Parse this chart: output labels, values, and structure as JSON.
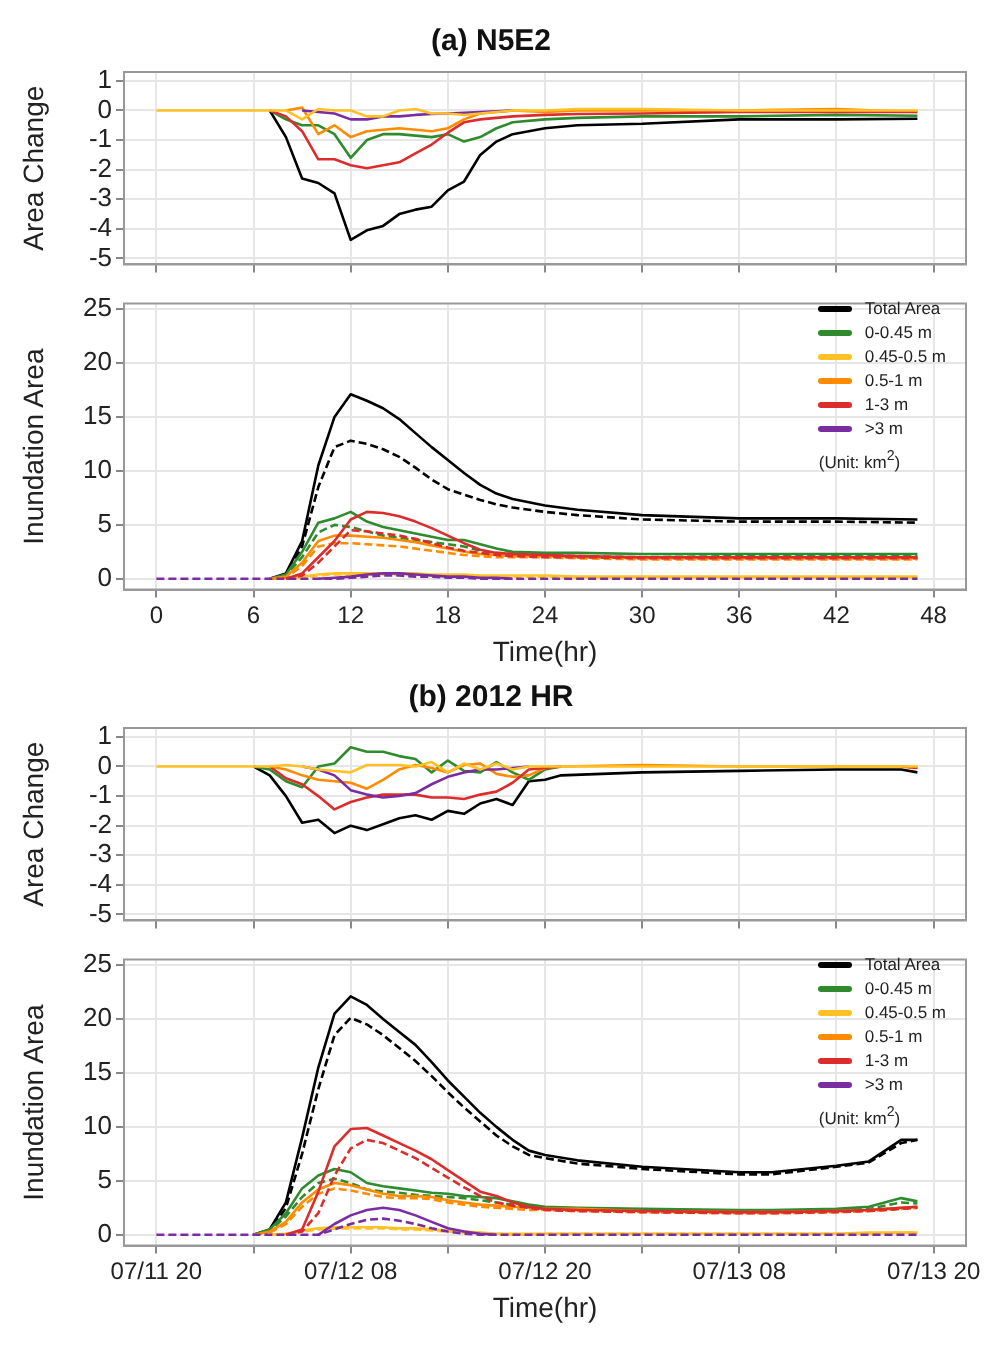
{
  "chart_data": [
    {
      "type": "line",
      "title": "(a) N5E2",
      "ylabel": "Area Change",
      "xlim": [
        -2,
        50
      ],
      "xticks": [
        0,
        6,
        12,
        18,
        24,
        30,
        36,
        42,
        48
      ],
      "ylim": [
        -5.2,
        1.3
      ],
      "yticks": [
        -5,
        -4,
        -3,
        -2,
        -1,
        0,
        1
      ],
      "grid": true,
      "tick_labels": "y",
      "marker": "none",
      "x": [
        0,
        7,
        8,
        9,
        10,
        11,
        12,
        13,
        14,
        15,
        16,
        17,
        18,
        19,
        20,
        21,
        22,
        24,
        26,
        30,
        36,
        42,
        47
      ],
      "series": [
        {
          "color": "#000000",
          "values": [
            null,
            0,
            -0.9,
            -2.3,
            -2.45,
            -2.8,
            -4.37,
            -4.05,
            -3.9,
            -3.5,
            -3.35,
            -3.25,
            -2.7,
            -2.4,
            -1.5,
            -1.05,
            -0.8,
            -0.6,
            -0.5,
            -0.45,
            -0.3,
            -0.3,
            -0.28
          ]
        },
        {
          "color": "#2e8b2e",
          "values": [
            null,
            0,
            -0.3,
            -0.5,
            -0.5,
            -0.8,
            -1.6,
            -1.0,
            -0.8,
            -0.8,
            -0.85,
            -0.9,
            -0.8,
            -1.05,
            -0.9,
            -0.6,
            -0.4,
            -0.3,
            -0.25,
            -0.2,
            -0.2,
            -0.15,
            -0.18
          ]
        },
        {
          "color": "#ff8c00",
          "values": [
            null,
            null,
            0,
            0.1,
            -0.8,
            -0.5,
            -0.9,
            -0.7,
            -0.65,
            -0.6,
            -0.65,
            -0.7,
            -0.6,
            -0.3,
            -0.1,
            -0.05,
            0,
            -0.05,
            0,
            0,
            0,
            0.05,
            -0.05
          ]
        },
        {
          "color": "#dd2c2c",
          "values": [
            null,
            0,
            -0.2,
            -0.7,
            -1.65,
            -1.65,
            -1.85,
            -1.95,
            -1.85,
            -1.75,
            -1.45,
            -1.15,
            -0.75,
            -0.4,
            -0.3,
            -0.25,
            -0.2,
            -0.15,
            -0.12,
            -0.1,
            -0.05,
            -0.05,
            -0.05
          ]
        },
        {
          "color": "#7a2da0",
          "values": [
            null,
            null,
            null,
            0,
            -0.05,
            -0.1,
            -0.3,
            -0.3,
            -0.2,
            -0.2,
            -0.15,
            -0.12,
            -0.1,
            -0.08,
            -0.05,
            -0.03,
            0,
            null,
            null,
            null,
            null,
            null,
            null
          ]
        },
        {
          "color": "#ffc125",
          "values": [
            0,
            0,
            0,
            -0.3,
            0.05,
            0,
            0,
            -0.2,
            -0.2,
            0,
            0.05,
            -0.1,
            -0.1,
            -0.15,
            -0.1,
            -0.05,
            0,
            0,
            0.05,
            0.05,
            0,
            0,
            0
          ]
        }
      ]
    },
    {
      "type": "line",
      "ylabel": "Inundation Area",
      "xlabel": "Time(hr)",
      "xlim": [
        -2,
        50
      ],
      "xticks": [
        0,
        6,
        12,
        18,
        24,
        30,
        36,
        42,
        48
      ],
      "ylim": [
        -1,
        25.5
      ],
      "yticks": [
        0,
        5,
        10,
        15,
        20,
        25
      ],
      "grid": true,
      "marker": "none",
      "legend": "top right",
      "annotations": [
        "(Unit: km$^{2}$)"
      ],
      "x": [
        0,
        7,
        8,
        9,
        10,
        11,
        12,
        13,
        14,
        15,
        16,
        17,
        18,
        19,
        20,
        21,
        22,
        24,
        26,
        30,
        36,
        42,
        47
      ],
      "series": [
        {
          "name": "Total Area",
          "color": "#000000",
          "values": [
            null,
            0,
            0.5,
            3.5,
            10.5,
            15,
            17.1,
            16.5,
            15.8,
            14.8,
            13.5,
            12.2,
            11,
            9.8,
            8.7,
            7.9,
            7.4,
            6.8,
            6.4,
            5.9,
            5.6,
            5.6,
            5.5
          ]
        },
        {
          "color": "#000000",
          "line_style": "dashed",
          "values": [
            null,
            0,
            0.3,
            3,
            8.5,
            12.2,
            12.8,
            12.5,
            12,
            11.3,
            10.3,
            9.2,
            8.3,
            7.8,
            7.3,
            6.9,
            6.6,
            6.2,
            5.9,
            5.5,
            5.3,
            5.3,
            5.2
          ]
        },
        {
          "name": "0-0.45 m",
          "color": "#2e8b2e",
          "values": [
            null,
            0,
            0.4,
            2.5,
            5.2,
            5.6,
            6.2,
            5.3,
            4.8,
            4.5,
            4.2,
            3.9,
            3.6,
            3.6,
            3.2,
            2.8,
            2.5,
            2.4,
            2.4,
            2.3,
            2.3,
            2.3,
            2.3
          ]
        },
        {
          "color": "#2e8b2e",
          "line_style": "dashed",
          "values": [
            null,
            0,
            0.3,
            2,
            4.3,
            5,
            4.8,
            4.4,
            4,
            3.8,
            3.6,
            3.4,
            3.2,
            3,
            2.6,
            2.4,
            2.3,
            2.2,
            2.1,
            2,
            2.1,
            2.1,
            2.1
          ]
        },
        {
          "name": "0.45-0.5 m",
          "color": "#ffc125",
          "values": [
            null,
            null,
            0,
            0.2,
            0.4,
            0.5,
            0.5,
            0.5,
            0.5,
            0.5,
            0.5,
            0.4,
            0.4,
            0.4,
            0.3,
            0.3,
            0.3,
            0.3,
            0.2,
            0.2,
            0.2,
            0.2,
            0.2
          ]
        },
        {
          "color": "#ffc125",
          "line_style": "dashed",
          "values": [
            null,
            null,
            0,
            0.1,
            0.3,
            0.4,
            0.4,
            0.4,
            0.4,
            0.4,
            0.4,
            0.3,
            0.3,
            0.3,
            0.2,
            0.2,
            0.2,
            0.2,
            0.1,
            0.1,
            0.1,
            0.1,
            0.1
          ]
        },
        {
          "name": "0.5-1 m",
          "color": "#ff8c00",
          "values": [
            null,
            0,
            0.2,
            1.5,
            3.5,
            4,
            4,
            3.9,
            3.8,
            3.6,
            3.4,
            3.1,
            2.8,
            2.5,
            2.3,
            2.2,
            2.1,
            2.1,
            2,
            1.9,
            1.9,
            1.9,
            1.9
          ]
        },
        {
          "color": "#ff8c00",
          "line_style": "dashed",
          "values": [
            null,
            0,
            0.1,
            1.2,
            3,
            3.3,
            3.3,
            3.2,
            3.1,
            3,
            2.8,
            2.6,
            2.4,
            2.2,
            2.1,
            2,
            2,
            2,
            1.9,
            1.8,
            1.8,
            1.8,
            1.8
          ]
        },
        {
          "name": "1-3 m",
          "color": "#dd2c2c",
          "values": [
            null,
            null,
            0,
            0.5,
            2,
            3.5,
            5.5,
            6.2,
            6.1,
            5.8,
            5.3,
            4.7,
            4,
            3.3,
            2.7,
            2.4,
            2.3,
            2.2,
            2.1,
            2,
            2,
            2,
            2
          ]
        },
        {
          "color": "#dd2c2c",
          "line_style": "dashed",
          "values": [
            null,
            null,
            0,
            0.3,
            1.5,
            3,
            4.5,
            4.4,
            4.2,
            4,
            3.7,
            3.3,
            2.9,
            2.6,
            2.4,
            2.2,
            2.1,
            2,
            2,
            1.9,
            1.9,
            1.9,
            1.9
          ]
        },
        {
          "name": ">3 m",
          "color": "#7a2da0",
          "values": [
            null,
            null,
            null,
            null,
            0,
            0.1,
            0.2,
            0.4,
            0.5,
            0.5,
            0.4,
            0.3,
            0.2,
            0.2,
            0.1,
            0.1,
            0,
            null,
            null,
            null,
            null,
            null,
            null
          ]
        },
        {
          "color": "#7a2da0",
          "line_style": "dashed",
          "values": [
            0,
            0,
            0,
            0,
            0,
            0,
            0.1,
            0.2,
            0.3,
            0.3,
            0.2,
            0.2,
            0.1,
            0.1,
            0,
            0,
            0,
            0,
            0,
            0,
            0,
            0,
            0
          ]
        }
      ]
    },
    {
      "type": "line",
      "title": "(b) 2012 HR",
      "ylabel": "Area Change",
      "xlim": [
        "--07-11T18:00",
        "--07-13T22:00"
      ],
      "xticks": [
        "--07-11T20:00",
        "--07-12T02:00",
        "--07-12T08:00",
        "--07-12T14:00",
        "--07-12T20:00",
        "--07-13T02:00",
        "--07-13T08:00",
        "--07-13T14:00",
        "--07-13T20:00"
      ],
      "ylim": [
        -5.2,
        1.3
      ],
      "yticks": [
        -5,
        -4,
        -3,
        -2,
        -1,
        0,
        1
      ],
      "grid": true,
      "tick_labels": "y",
      "marker": "none",
      "x": [
        "--07-11T20:00",
        "--07-12T02:00",
        "--07-12T03:00",
        "--07-12T04:00",
        "--07-12T05:00",
        "--07-12T06:00",
        "--07-12T07:00",
        "--07-12T08:00",
        "--07-12T09:00",
        "--07-12T10:00",
        "--07-12T11:00",
        "--07-12T12:00",
        "--07-12T13:00",
        "--07-12T14:00",
        "--07-12T15:00",
        "--07-12T16:00",
        "--07-12T17:00",
        "--07-12T18:00",
        "--07-12T19:00",
        "--07-12T20:00",
        "--07-12T21:00",
        "--07-13T02:00",
        "--07-13T08:00",
        "--07-13T14:00",
        "--07-13T18:00",
        "--07-13T19:00"
      ],
      "series": [
        {
          "color": "#000000",
          "values": [
            null,
            0,
            -0.3,
            -1.0,
            -1.9,
            -1.8,
            -2.25,
            -2.0,
            -2.15,
            -1.95,
            -1.75,
            -1.65,
            -1.8,
            -1.5,
            -1.6,
            -1.25,
            -1.1,
            -1.3,
            -0.5,
            -0.45,
            -0.3,
            -0.2,
            -0.15,
            -0.1,
            -0.1,
            -0.2
          ]
        },
        {
          "color": "#2e8b2e",
          "values": [
            null,
            0,
            -0.1,
            -0.5,
            -0.7,
            0,
            0.1,
            0.65,
            0.5,
            0.5,
            0.35,
            0.25,
            -0.2,
            0.2,
            -0.15,
            -0.2,
            0.15,
            -0.2,
            -0.45,
            -0.1,
            0,
            null,
            null,
            null,
            null,
            null
          ]
        },
        {
          "color": "#ff8c00",
          "values": [
            null,
            null,
            0,
            -0.1,
            -0.3,
            -0.45,
            -0.5,
            -0.55,
            -0.75,
            -0.45,
            -0.1,
            0.05,
            -0.05,
            -0.2,
            0.05,
            0.1,
            -0.25,
            -0.35,
            -0.3,
            -0.05,
            0,
            0.05,
            0,
            0,
            0,
            -0.05
          ]
        },
        {
          "color": "#dd2c2c",
          "values": [
            null,
            null,
            0,
            -0.4,
            -0.6,
            -1.0,
            -1.45,
            -1.2,
            -1.05,
            -0.95,
            -0.95,
            -0.95,
            -1.05,
            -1.05,
            -1.1,
            -0.95,
            -0.85,
            -0.55,
            -0.1,
            -0.05,
            0,
            null,
            null,
            null,
            0,
            -0.05
          ]
        },
        {
          "color": "#7a2da0",
          "values": [
            null,
            null,
            null,
            null,
            0,
            -0.1,
            -0.3,
            -0.8,
            -0.95,
            -1.05,
            -1.0,
            -0.9,
            -0.6,
            -0.35,
            -0.2,
            -0.1,
            -0.1,
            -0.05,
            0,
            null,
            null,
            null,
            null,
            null,
            null,
            null
          ]
        },
        {
          "color": "#ffc125",
          "values": [
            0,
            0,
            0,
            0.05,
            0,
            -0.1,
            -0.15,
            -0.2,
            0.05,
            0.05,
            0.05,
            0,
            0.15,
            -0.2,
            0.1,
            -0.1,
            0.1,
            -0.1,
            0,
            0,
            0,
            0,
            0,
            0,
            0,
            0
          ]
        }
      ]
    },
    {
      "type": "line",
      "ylabel": "Inundation Area",
      "xlabel": "Time(hr)",
      "xlim": [
        "--07-11T18:00",
        "--07-13T22:00"
      ],
      "xticks": [
        {
          "value": "--07-11T20:00",
          "label": "07/11 20"
        },
        {
          "value": "--07-12T02:00",
          "label": null
        },
        {
          "value": "--07-12T08:00",
          "label": "07/12 08"
        },
        {
          "value": "--07-12T14:00",
          "label": null
        },
        {
          "value": "--07-12T20:00",
          "label": "07/12 20"
        },
        {
          "value": "--07-13T02:00",
          "label": null
        },
        {
          "value": "--07-13T08:00",
          "label": "07/13 08"
        },
        {
          "value": "--07-13T14:00",
          "label": null
        },
        {
          "value": "--07-13T20:00",
          "label": "07/13 20"
        }
      ],
      "ylim": [
        -1,
        25.5
      ],
      "yticks": [
        0,
        5,
        10,
        15,
        20,
        25
      ],
      "grid": true,
      "marker": "none",
      "legend": "top right",
      "annotations": [
        "(Unit: km$^{2}$)"
      ],
      "x": [
        "--07-11T20:00",
        "--07-12T02:00",
        "--07-12T03:00",
        "--07-12T04:00",
        "--07-12T05:00",
        "--07-12T06:00",
        "--07-12T07:00",
        "--07-12T08:00",
        "--07-12T09:00",
        "--07-12T10:00",
        "--07-12T11:00",
        "--07-12T12:00",
        "--07-12T13:00",
        "--07-12T14:00",
        "--07-12T15:00",
        "--07-12T16:00",
        "--07-12T17:00",
        "--07-12T18:00",
        "--07-12T19:00",
        "--07-12T20:00",
        "--07-12T22:00",
        "--07-13T02:00",
        "--07-13T08:00",
        "--07-13T10:00",
        "--07-13T14:00",
        "--07-13T16:00",
        "--07-13T18:00",
        "--07-13T19:00"
      ],
      "series": [
        {
          "name": "Total Area",
          "color": "#000000",
          "values": [
            null,
            0,
            0.5,
            3,
            9,
            15.5,
            20.5,
            22.1,
            21.3,
            20,
            18.8,
            17.6,
            16,
            14.3,
            12.8,
            11.3,
            10,
            8.8,
            7.8,
            7.4,
            6.9,
            6.3,
            5.8,
            5.8,
            6.4,
            6.8,
            8.8,
            8.8
          ]
        },
        {
          "color": "#000000",
          "line_style": "dashed",
          "values": [
            null,
            0,
            0.3,
            2.5,
            7.5,
            13.5,
            18.5,
            20.1,
            19.5,
            18.5,
            17.3,
            16.1,
            14.7,
            13.2,
            11.8,
            10.5,
            9.2,
            8.2,
            7.4,
            7.1,
            6.6,
            6.1,
            5.6,
            5.6,
            6.3,
            6.7,
            8.5,
            8.8
          ]
        },
        {
          "name": "0-0.45 m",
          "color": "#2e8b2e",
          "values": [
            null,
            0,
            0.5,
            2,
            4.3,
            5.5,
            6.1,
            5.8,
            4.8,
            4.5,
            4.3,
            4.1,
            3.9,
            3.8,
            3.6,
            3.5,
            3.4,
            3.1,
            2.8,
            2.6,
            2.5,
            2.4,
            2.3,
            2.3,
            2.4,
            2.6,
            3.4,
            3.1
          ]
        },
        {
          "color": "#2e8b2e",
          "line_style": "dashed",
          "values": [
            null,
            0,
            0.4,
            1.7,
            3.5,
            4.8,
            5.2,
            4.8,
            4.2,
            4,
            3.9,
            3.7,
            3.6,
            3.5,
            3.4,
            3.2,
            3,
            2.8,
            2.6,
            2.4,
            2.3,
            2.2,
            2.1,
            2.1,
            2.2,
            2.4,
            3,
            2.9
          ]
        },
        {
          "name": "0.45-0.5 m",
          "color": "#ffc125",
          "values": [
            null,
            null,
            0,
            0.1,
            0.4,
            0.6,
            0.7,
            0.7,
            0.7,
            0.7,
            0.6,
            0.6,
            0.5,
            0.4,
            0.3,
            0.2,
            0.1,
            0.1,
            0.1,
            0.1,
            0.1,
            0.1,
            0.1,
            0.1,
            0.1,
            0.2,
            0.2,
            0.2
          ]
        },
        {
          "color": "#ffc125",
          "line_style": "dashed",
          "values": [
            null,
            null,
            0,
            0.1,
            0.3,
            0.5,
            0.6,
            0.6,
            0.6,
            0.6,
            0.5,
            0.5,
            0.4,
            0.3,
            0.2,
            0.2,
            0.1,
            0,
            0,
            0.1,
            0.1,
            0.1,
            0.1,
            0.1,
            0.1,
            0.1,
            0.2,
            0.2
          ]
        },
        {
          "name": "0.5-1 m",
          "color": "#ff8c00",
          "values": [
            null,
            0,
            0.3,
            1.2,
            3,
            4.2,
            4.8,
            4.6,
            4.2,
            3.8,
            3.6,
            3.6,
            3.5,
            3.2,
            3,
            2.8,
            2.7,
            2.6,
            2.5,
            2.4,
            2.4,
            2.2,
            2.1,
            2.1,
            2.2,
            2.3,
            2.5,
            2.6
          ]
        },
        {
          "color": "#ff8c00",
          "line_style": "dashed",
          "values": [
            null,
            null,
            0.2,
            1,
            2.6,
            3.8,
            4.3,
            4.1,
            3.8,
            3.5,
            3.4,
            3.4,
            3.3,
            3,
            2.8,
            2.6,
            2.5,
            2.4,
            2.3,
            2.3,
            2.2,
            2.1,
            2,
            2,
            2.1,
            2.2,
            2.4,
            2.5
          ]
        },
        {
          "name": "1-3 m",
          "color": "#dd2c2c",
          "values": [
            null,
            null,
            null,
            0,
            0.5,
            4,
            8.2,
            9.8,
            9.9,
            9.2,
            8.5,
            7.8,
            7,
            6,
            5,
            4,
            3.6,
            3,
            2.6,
            2.4,
            2.3,
            2.2,
            2.1,
            2.1,
            2.2,
            2.3,
            2.5,
            2.6
          ]
        },
        {
          "color": "#dd2c2c",
          "line_style": "dashed",
          "values": [
            null,
            null,
            null,
            0,
            0.3,
            2,
            5.5,
            8,
            8.8,
            8.5,
            7.8,
            7.1,
            6.2,
            5.3,
            4.4,
            3.6,
            3,
            2.7,
            2.5,
            2.3,
            2.2,
            2.1,
            2,
            2,
            2.1,
            2.2,
            2.4,
            2.5
          ]
        },
        {
          "name": ">3 m",
          "color": "#7a2da0",
          "values": [
            null,
            null,
            null,
            null,
            null,
            0,
            1,
            1.8,
            2.3,
            2.5,
            2.3,
            1.8,
            1.2,
            0.6,
            0.3,
            0.1,
            0,
            null,
            null,
            null,
            null,
            null,
            null,
            null,
            null,
            null,
            null,
            null
          ]
        },
        {
          "color": "#7a2da0",
          "line_style": "dashed",
          "values": [
            0,
            0,
            0,
            0,
            0,
            0,
            0.5,
            1,
            1.4,
            1.5,
            1.3,
            1,
            0.6,
            0.3,
            0.1,
            0,
            0,
            0,
            0,
            0,
            0,
            0,
            0,
            0,
            0,
            0,
            0,
            0
          ]
        }
      ]
    }
  ]
}
